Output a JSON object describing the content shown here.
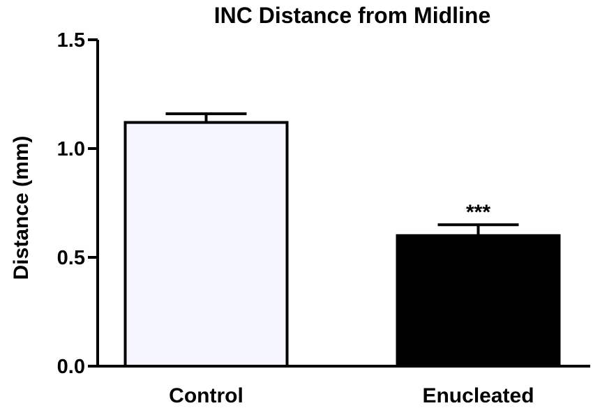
{
  "chart_data": {
    "type": "bar",
    "title": "INC Distance from Midline",
    "ylabel": "Distance (mm)",
    "xlabel": "",
    "categories": [
      "Control",
      "Enucleated"
    ],
    "values": [
      1.12,
      0.6
    ],
    "error": [
      0.04,
      0.05
    ],
    "bar_colors": [
      "#f5f5ff",
      "#000000"
    ],
    "annotations": [
      "",
      "***"
    ],
    "ylim": [
      0.0,
      1.5
    ],
    "yticks": [
      0.0,
      0.5,
      1.0,
      1.5
    ],
    "ytick_labels": [
      "0.0",
      "0.5",
      "1.0",
      "1.5"
    ],
    "grid": false
  }
}
